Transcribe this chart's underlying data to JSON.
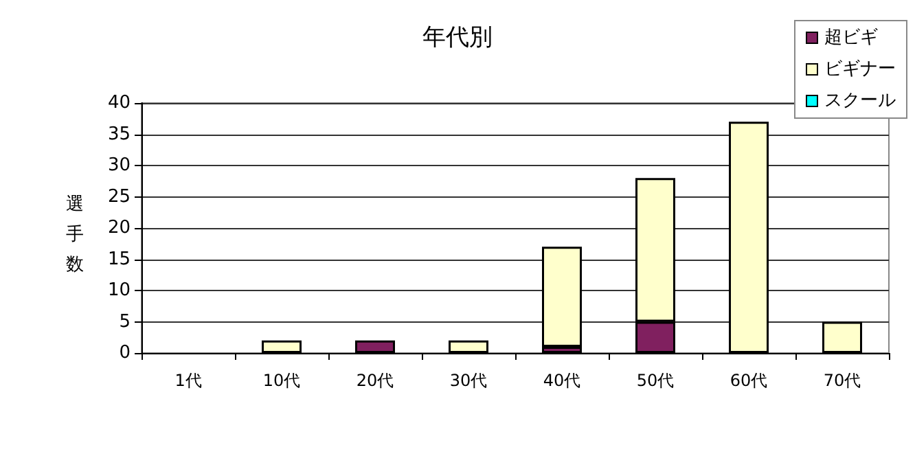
{
  "chart_data": {
    "type": "bar",
    "title": "年代別",
    "ylabel": "選手数",
    "stacked": true,
    "categories": [
      "1代",
      "10代",
      "20代",
      "30代",
      "40代",
      "50代",
      "60代",
      "70代"
    ],
    "series": [
      {
        "name": "超ビギ",
        "color": "#80205f",
        "values": [
          0,
          0,
          2,
          0,
          1,
          5,
          0,
          0
        ]
      },
      {
        "name": "ビギナー",
        "color": "#ffffcc",
        "values": [
          0,
          2,
          0,
          2,
          16,
          23,
          37,
          5
        ]
      },
      {
        "name": "スクール",
        "color": "#00ffff",
        "values": [
          0,
          0,
          0,
          0,
          0,
          0,
          0,
          0
        ]
      }
    ],
    "ylim": [
      0,
      40
    ],
    "yticks": [
      0,
      5,
      10,
      15,
      20,
      25,
      30,
      35,
      40
    ],
    "grid": "y",
    "legend": "top right"
  }
}
